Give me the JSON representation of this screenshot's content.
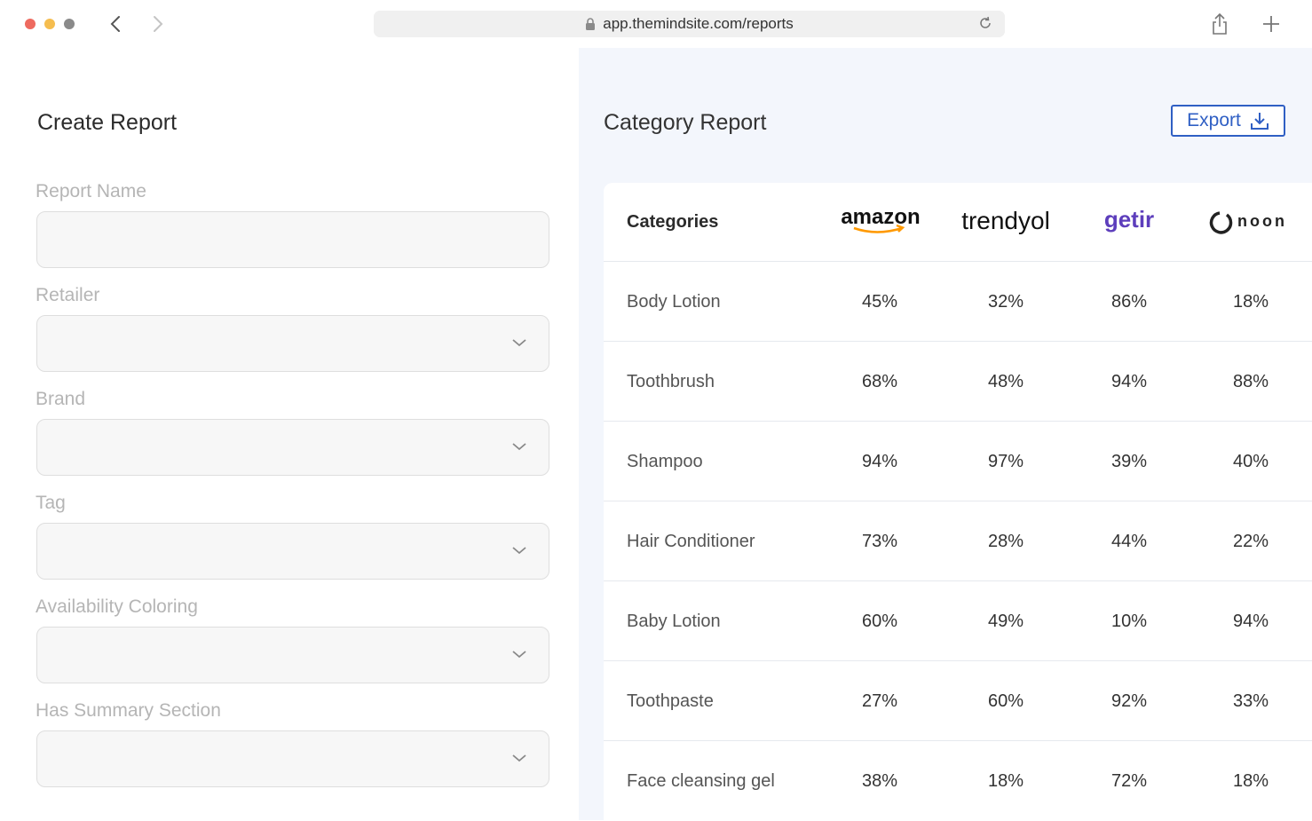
{
  "browser": {
    "url": "app.themindsite.com/reports"
  },
  "form": {
    "title": "Create Report",
    "fields": [
      {
        "label": "Report Name",
        "type": "text",
        "value": ""
      },
      {
        "label": "Retailer",
        "type": "select",
        "value": ""
      },
      {
        "label": "Brand",
        "type": "select",
        "value": ""
      },
      {
        "label": "Tag",
        "type": "select",
        "value": ""
      },
      {
        "label": "Availability Coloring",
        "type": "select",
        "value": ""
      },
      {
        "label": "Has Summary Section",
        "type": "select",
        "value": ""
      }
    ]
  },
  "report": {
    "title": "Category Report",
    "export_label": "Export",
    "header": {
      "categories_label": "Categories",
      "retailers": [
        {
          "logo": "amazon",
          "color": "#111111",
          "accent": "#f90"
        },
        {
          "logo": "trendyol",
          "color": "#111111"
        },
        {
          "logo": "getir",
          "color": "#5d3ebc"
        },
        {
          "logo": "noon",
          "color": "#222222"
        }
      ]
    },
    "rows": [
      {
        "category": "Body Lotion",
        "values": [
          "45%",
          "32%",
          "86%",
          "18%"
        ]
      },
      {
        "category": "Toothbrush",
        "values": [
          "68%",
          "48%",
          "94%",
          "88%"
        ]
      },
      {
        "category": "Shampoo",
        "values": [
          "94%",
          "97%",
          "39%",
          "40%"
        ]
      },
      {
        "category": "Hair Conditioner",
        "values": [
          "73%",
          "28%",
          "44%",
          "22%"
        ]
      },
      {
        "category": "Baby Lotion",
        "values": [
          "60%",
          "49%",
          "10%",
          "94%"
        ]
      },
      {
        "category": "Toothpaste",
        "values": [
          "27%",
          "60%",
          "92%",
          "33%"
        ]
      },
      {
        "category": "Face cleansing gel",
        "values": [
          "38%",
          "18%",
          "72%",
          "18%"
        ]
      }
    ]
  },
  "colors": {
    "accent": "#2f5fc4",
    "panel_bg": "#f3f6fc"
  }
}
